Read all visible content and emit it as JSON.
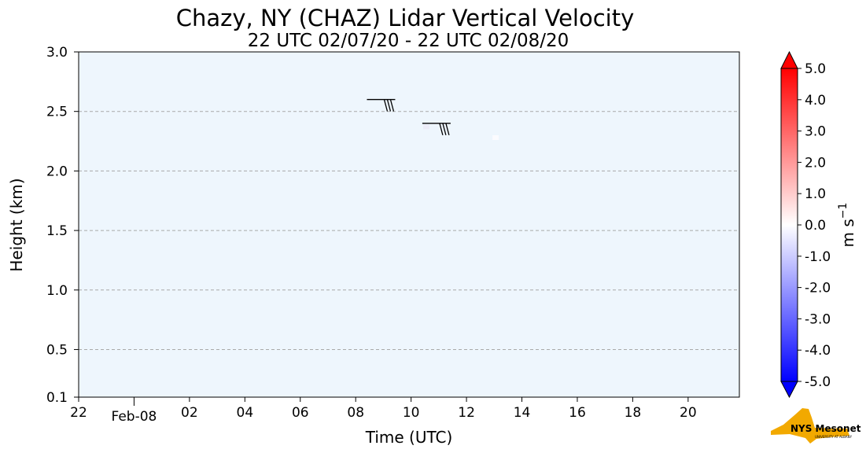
{
  "chart_data": {
    "type": "heatmap",
    "title": "Chazy, NY (CHAZ) Lidar Vertical Velocity",
    "subtitle": "22 UTC 02/07/20 - 22 UTC 02/08/20",
    "xlabel": "Time (UTC)",
    "ylabel": "Height (km)",
    "xlim_hours_utc": [
      22,
      45.85
    ],
    "x_ticks": [
      {
        "hour": 22,
        "label": "22"
      },
      {
        "hour": 26,
        "label": "02"
      },
      {
        "hour": 28,
        "label": "04"
      },
      {
        "hour": 30,
        "label": "06"
      },
      {
        "hour": 32,
        "label": "08"
      },
      {
        "hour": 34,
        "label": "10"
      },
      {
        "hour": 36,
        "label": "12"
      },
      {
        "hour": 38,
        "label": "14"
      },
      {
        "hour": 40,
        "label": "16"
      },
      {
        "hour": 42,
        "label": "18"
      },
      {
        "hour": 44,
        "label": "20"
      }
    ],
    "date_tick": {
      "hour": 24,
      "label": "Feb-08"
    },
    "ylim": [
      0.1,
      3.0
    ],
    "y_ticks": [
      {
        "value": 0.1,
        "label": "0.1"
      },
      {
        "value": 0.5,
        "label": "0.5"
      },
      {
        "value": 1.0,
        "label": "1.0"
      },
      {
        "value": 1.5,
        "label": "1.5"
      },
      {
        "value": 2.0,
        "label": "2.0"
      },
      {
        "value": 2.5,
        "label": "2.5"
      },
      {
        "value": 3.0,
        "label": "3.0"
      }
    ],
    "gridlines_y": [
      0.5,
      1.0,
      1.5,
      2.0,
      2.5
    ],
    "grid": "horizontal dashed",
    "background_color": "#eef6fd",
    "wind_barbs": [
      {
        "hour": 33.2,
        "height_km": 2.6
      },
      {
        "hour": 35.2,
        "height_km": 2.4
      }
    ],
    "data_patches": [
      {
        "hour": 34.55,
        "height_km": 2.37,
        "color": "#ececf8"
      },
      {
        "hour": 37.05,
        "height_km": 2.28,
        "color": "#fbfbfe"
      }
    ],
    "colorbar": {
      "label": "m s",
      "label_superscript": "−1",
      "min": -5.0,
      "max": 5.0,
      "extend": "both",
      "ticks": [
        "5.0",
        "4.0",
        "3.0",
        "2.0",
        "1.0",
        "0.0",
        "-1.0",
        "-2.0",
        "-3.0",
        "-4.0",
        "-5.0"
      ],
      "tick_values": [
        5,
        4,
        3,
        2,
        1,
        0,
        -1,
        -2,
        -3,
        -4,
        -5
      ],
      "colormap": "bwr",
      "low_color": "#0000ff",
      "mid_color": "#ffffff",
      "high_color": "#ff0000"
    }
  },
  "logo": {
    "text": "NYS Mesonet",
    "subtext": "UNIVERSITY AT ALBANY",
    "shape_color": "#f2a900",
    "text_color": "#4b2e83"
  }
}
